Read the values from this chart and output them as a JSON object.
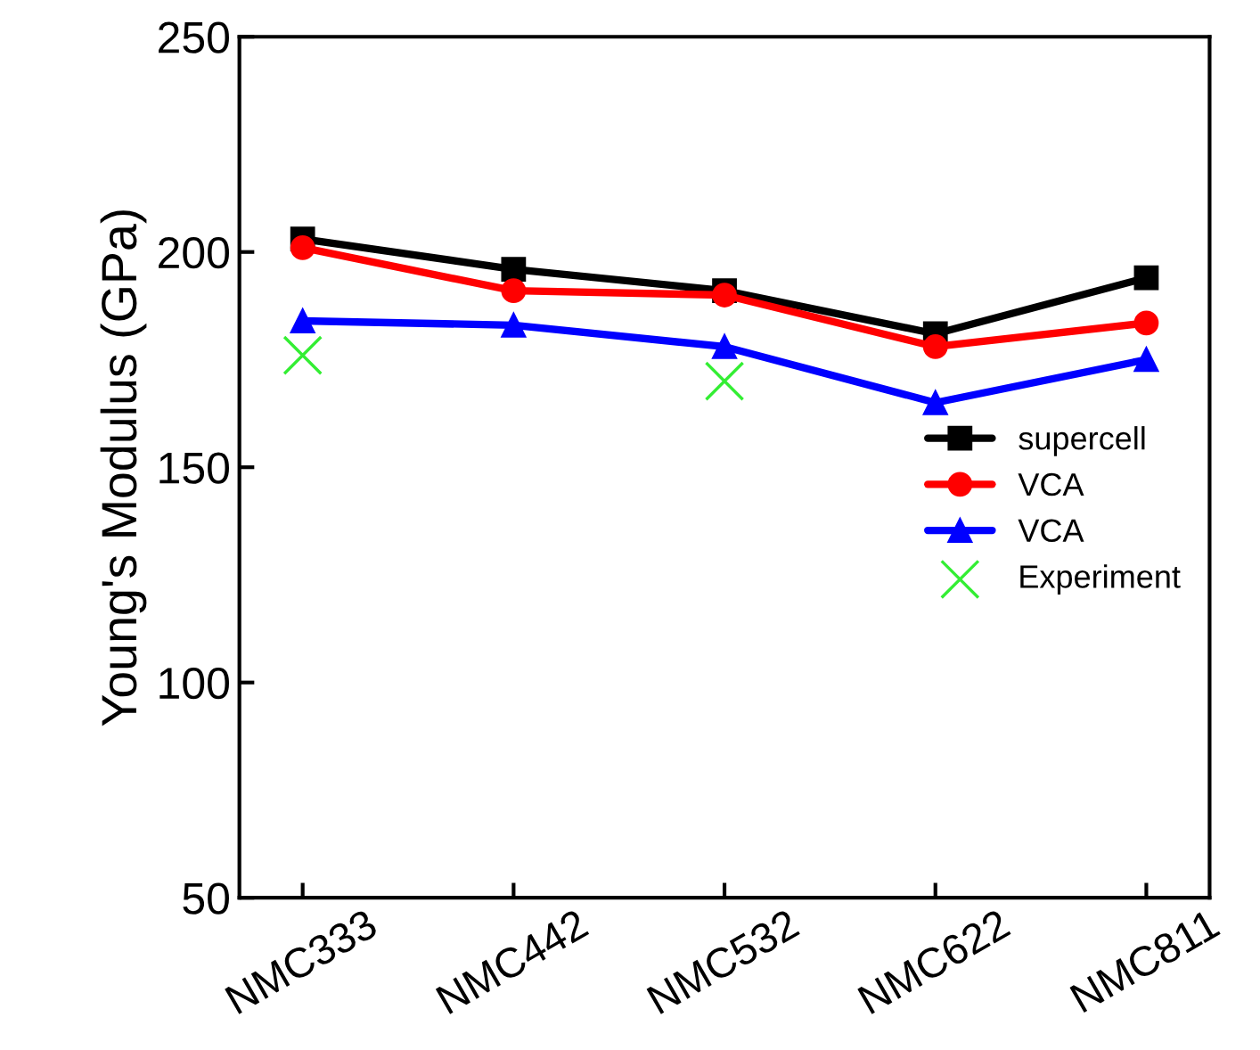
{
  "chart_data": {
    "type": "line",
    "ylabel": "Young's Modulus (GPa)",
    "categories": [
      "NMC333",
      "NMC442",
      "NMC532",
      "NMC622",
      "NMC811"
    ],
    "series": [
      {
        "name": "supercell",
        "color": "#000000",
        "marker": "square",
        "values": [
          203,
          196,
          191,
          181,
          194
        ]
      },
      {
        "name": "VCA",
        "color": "#ff0000",
        "marker": "circle",
        "values": [
          201,
          191,
          190,
          178,
          183.5
        ]
      },
      {
        "name": "VCA",
        "color": "#0000ff",
        "marker": "triangle",
        "values": [
          184,
          183,
          178,
          165,
          175
        ]
      },
      {
        "name": "Experiment",
        "type": "scatter",
        "color": "#33ee33",
        "marker": "cross",
        "values": [
          176,
          null,
          170,
          null,
          null
        ]
      }
    ],
    "ylim": [
      50,
      250
    ],
    "yticks": [
      50,
      100,
      150,
      200,
      250
    ],
    "grid": false,
    "legend": "right"
  }
}
